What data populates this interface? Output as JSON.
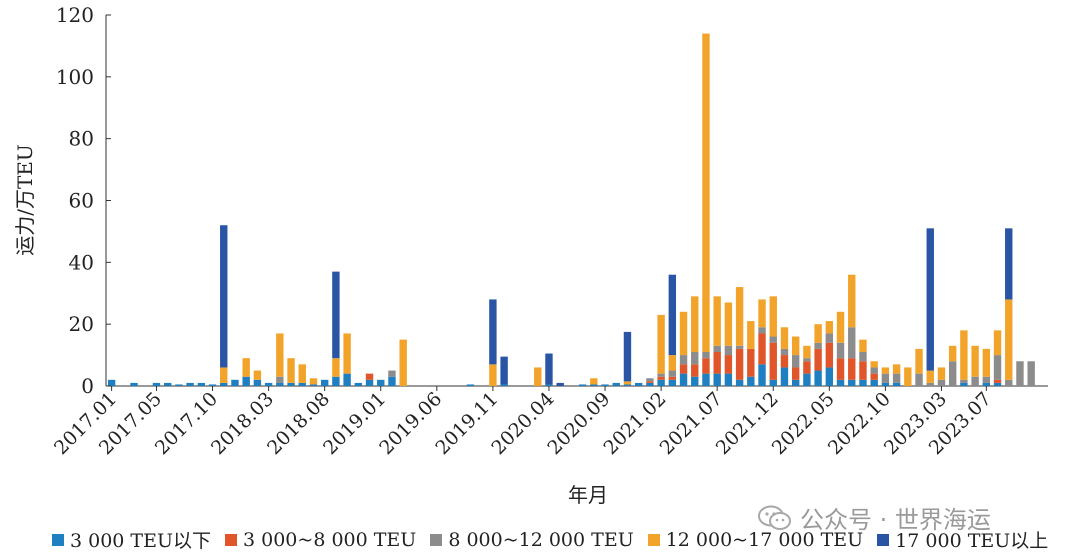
{
  "chart_data": {
    "type": "stacked-bar",
    "xlabel": "年月",
    "ylabel": "运力/万TEU",
    "ylim": [
      0,
      120
    ],
    "yticks": [
      0,
      20,
      40,
      60,
      80,
      100,
      120
    ],
    "x_tick_labels": [
      "2017.01",
      "2017.05",
      "2017.10",
      "2018.03",
      "2018.08",
      "2019.01",
      "2019.06",
      "2019.11",
      "2020.04",
      "2020.09",
      "2021.02",
      "2021.07",
      "2021.12",
      "2022.05",
      "2022.10",
      "2023.03",
      "2023.07"
    ],
    "x_tick_month_index": [
      0,
      4,
      9,
      14,
      19,
      24,
      29,
      34,
      39,
      44,
      49,
      54,
      59,
      64,
      69,
      74,
      78
    ],
    "months": [
      "2017.01",
      "2017.02",
      "2017.03",
      "2017.04",
      "2017.05",
      "2017.06",
      "2017.07",
      "2017.08",
      "2017.09",
      "2017.10",
      "2017.11",
      "2017.12",
      "2018.01",
      "2018.02",
      "2018.03",
      "2018.04",
      "2018.05",
      "2018.06",
      "2018.07",
      "2018.08",
      "2018.09",
      "2018.10",
      "2018.11",
      "2018.12",
      "2019.01",
      "2019.02",
      "2019.03",
      "2019.04",
      "2019.05",
      "2019.06",
      "2019.07",
      "2019.08",
      "2019.09",
      "2019.10",
      "2019.11",
      "2019.12",
      "2020.01",
      "2020.02",
      "2020.03",
      "2020.04",
      "2020.05",
      "2020.06",
      "2020.07",
      "2020.08",
      "2020.09",
      "2020.10",
      "2020.11",
      "2020.12",
      "2021.01",
      "2021.02",
      "2021.03",
      "2021.04",
      "2021.05",
      "2021.06",
      "2021.07",
      "2021.08",
      "2021.09",
      "2021.10",
      "2021.11",
      "2021.12",
      "2022.01",
      "2022.02",
      "2022.03",
      "2022.04",
      "2022.05",
      "2022.06",
      "2022.07",
      "2022.08",
      "2022.09",
      "2022.10",
      "2022.11",
      "2022.12",
      "2023.01",
      "2023.02",
      "2023.03",
      "2023.04",
      "2023.05",
      "2023.06",
      "2023.07",
      "2023.08",
      "2023.09",
      "2023.10",
      "2023.11",
      "2023.12"
    ],
    "series": [
      {
        "name": "3 000 TEU以下",
        "color": "#1f7fc0",
        "values": [
          2,
          0,
          1,
          0,
          1,
          1,
          0.5,
          1,
          1,
          0.5,
          1,
          2,
          3,
          2,
          1,
          1,
          1,
          1,
          0.5,
          2,
          3,
          4,
          1,
          2,
          2,
          3,
          0,
          0,
          0,
          0,
          0,
          0,
          0.5,
          0,
          0,
          0.5,
          0,
          0,
          0,
          0.5,
          0,
          0,
          0.5,
          0.5,
          0.5,
          1,
          0.5,
          1,
          1,
          2,
          2,
          4,
          3,
          4,
          4,
          4,
          2,
          3,
          7,
          2,
          6,
          2,
          4,
          5,
          6,
          2,
          2,
          2,
          2,
          1,
          1,
          0,
          0,
          0,
          0,
          0,
          1,
          0,
          1,
          1,
          0,
          0,
          0,
          0
        ]
      },
      {
        "name": "3 000~8 000 TEU",
        "color": "#e0562a",
        "values": [
          0,
          0,
          0,
          0,
          0,
          0,
          0,
          0,
          0,
          0,
          0,
          0,
          0,
          0,
          0,
          0,
          0,
          0,
          0,
          0,
          0,
          0,
          0,
          2,
          0,
          0,
          0,
          0,
          0,
          0,
          0,
          0,
          0,
          0,
          0,
          0,
          0,
          0,
          0,
          0,
          0,
          0,
          0,
          0,
          0,
          0,
          0,
          0,
          0.5,
          1,
          1,
          3,
          4,
          5,
          7,
          6,
          10,
          9,
          10,
          12,
          4,
          4,
          4,
          7,
          8,
          7,
          7,
          6,
          2,
          0,
          0,
          0,
          0,
          0,
          0,
          0,
          0,
          0,
          0,
          1,
          0,
          0,
          0,
          0
        ]
      },
      {
        "name": "8 000~12 000 TEU",
        "color": "#8c8c8c",
        "values": [
          0,
          0,
          0,
          0,
          0,
          0,
          0,
          0,
          0,
          0,
          0,
          0,
          0,
          0,
          0,
          2,
          0,
          0,
          0,
          0,
          0,
          0,
          0,
          0,
          0,
          2,
          0,
          0,
          0,
          0,
          0,
          0,
          0,
          0,
          0,
          0,
          0,
          0,
          0,
          0,
          0,
          0,
          0,
          0,
          0,
          0,
          0,
          0,
          1,
          1,
          2,
          3,
          4,
          2,
          2,
          3,
          1,
          0,
          2,
          2,
          2,
          4,
          1,
          2,
          3,
          5,
          10,
          3,
          2,
          3,
          3,
          0,
          4,
          1,
          2,
          8,
          1,
          3,
          2,
          8,
          2,
          8,
          8,
          0
        ]
      },
      {
        "name": "12 000~17 000 TEU",
        "color": "#f2a42a",
        "values": [
          0,
          0,
          0,
          0,
          0,
          0,
          0,
          0,
          0,
          0,
          5,
          0,
          6,
          3,
          0,
          14,
          8,
          6,
          2,
          0,
          6,
          13,
          0,
          0,
          0,
          0,
          15,
          0,
          0,
          0,
          0,
          0,
          0,
          0,
          7,
          0,
          0,
          0,
          6,
          0,
          0,
          0,
          0,
          2,
          0,
          0,
          1,
          0,
          0,
          19,
          5,
          14,
          18,
          103,
          16,
          14,
          19,
          9,
          9,
          13,
          7,
          6,
          4,
          6,
          4,
          10,
          17,
          4,
          2,
          2,
          3,
          6,
          8,
          4,
          4,
          5,
          16,
          10,
          9,
          8,
          26,
          0,
          0,
          0
        ]
      },
      {
        "name": "17 000 TEU以上",
        "color": "#2a55a5",
        "values": [
          0,
          0,
          0,
          0,
          0,
          0,
          0,
          0,
          0,
          0,
          46,
          0,
          0,
          0,
          0,
          0,
          0,
          0,
          0,
          0,
          28,
          0,
          0,
          0,
          0,
          0,
          0,
          0,
          0,
          0,
          0,
          0,
          0,
          0,
          21,
          9,
          0,
          0,
          0,
          10,
          1,
          0,
          0,
          0,
          0,
          0,
          16,
          0,
          0,
          0,
          26,
          0,
          0,
          0,
          0,
          0,
          0,
          0,
          0,
          0,
          0,
          0,
          0,
          0,
          0,
          0,
          0,
          0,
          0,
          0,
          0,
          0,
          0,
          46,
          0,
          0,
          0,
          0,
          0,
          0,
          23,
          0,
          0,
          0
        ]
      }
    ]
  },
  "legend": {
    "items": [
      {
        "label": "3 000 TEU以下",
        "color": "#1f7fc0"
      },
      {
        "label": "3 000~8 000 TEU",
        "color": "#e0562a"
      },
      {
        "label": "8 000~12 000 TEU",
        "color": "#8c8c8c"
      },
      {
        "label": "12 000~17 000 TEU",
        "color": "#f2a42a"
      },
      {
        "label": "17 000 TEU以上",
        "color": "#2a55a5"
      }
    ]
  },
  "watermark": {
    "text": "公众号 · 世界海运"
  }
}
